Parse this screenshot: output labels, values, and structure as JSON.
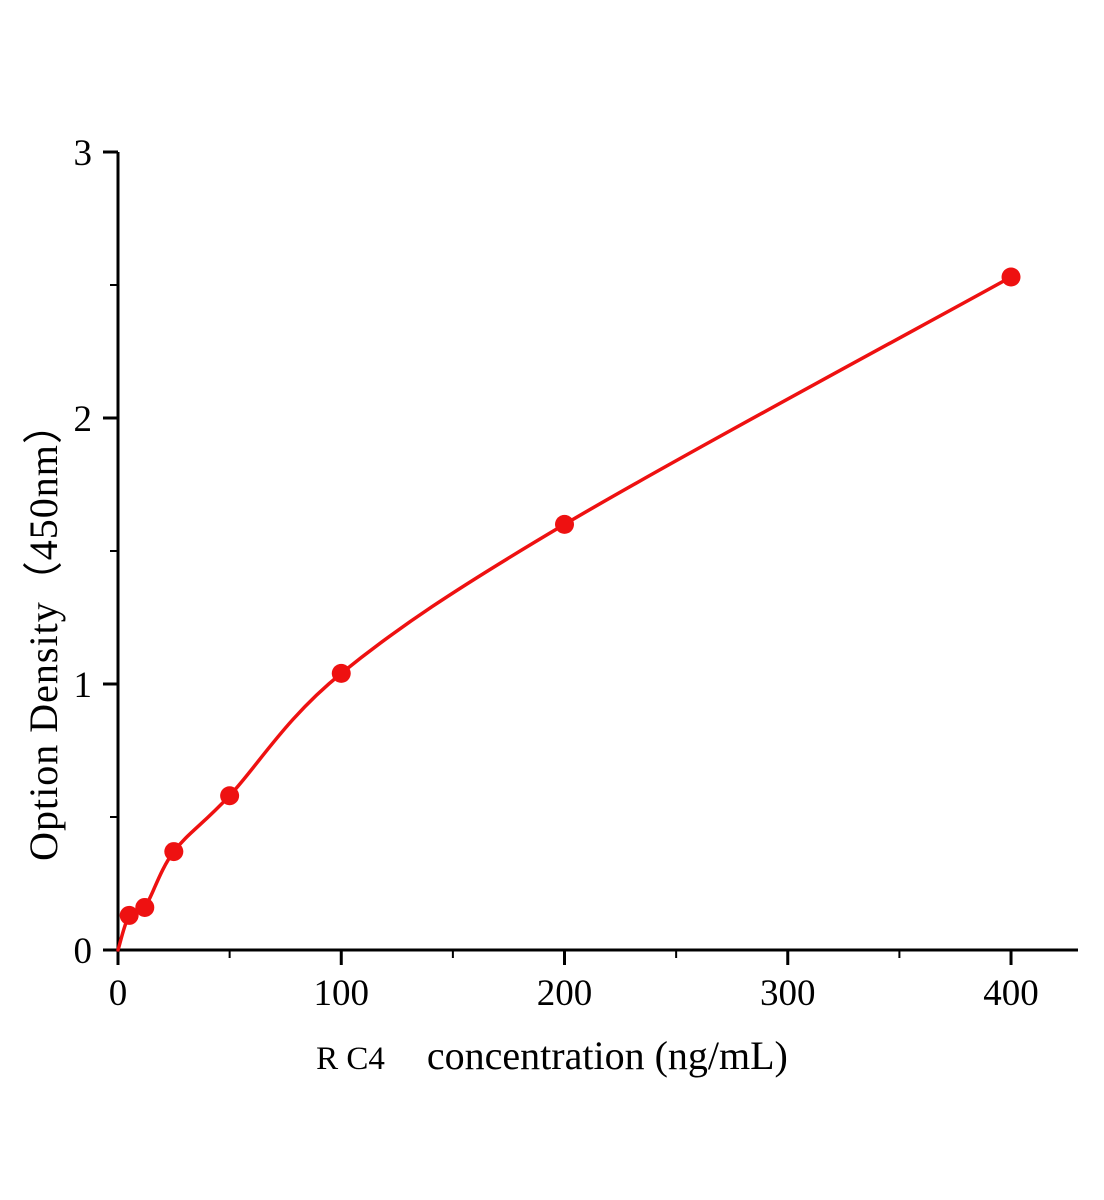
{
  "chart_data": {
    "type": "scatter",
    "title": "",
    "xlabel_prefix": "R C4",
    "xlabel": "concentration (ng/mL)",
    "ylabel": "Option Density（450nm）",
    "xlim": [
      0,
      430
    ],
    "ylim": [
      0,
      3
    ],
    "x_ticks": [
      0,
      100,
      200,
      300,
      400
    ],
    "x_minor_ticks": [
      50,
      150,
      250,
      350
    ],
    "y_ticks": [
      0,
      1,
      2,
      3
    ],
    "y_minor_ticks": [
      0.5,
      1.5,
      2.5
    ],
    "grid": false,
    "legend": false,
    "curve_start": {
      "x": 0,
      "y": 0
    },
    "points": [
      {
        "x": 5,
        "y": 0.13
      },
      {
        "x": 12,
        "y": 0.16
      },
      {
        "x": 25,
        "y": 0.37
      },
      {
        "x": 50,
        "y": 0.58
      },
      {
        "x": 100,
        "y": 1.04
      },
      {
        "x": 200,
        "y": 1.6
      },
      {
        "x": 400,
        "y": 2.53
      }
    ],
    "colors": {
      "series": "#ee1111",
      "axis": "#000000",
      "background": "#ffffff"
    }
  }
}
